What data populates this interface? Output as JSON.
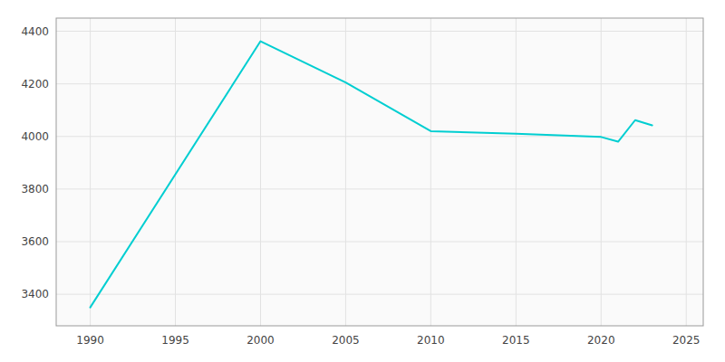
{
  "chart_data": {
    "type": "line",
    "x": [
      1990,
      2000,
      2005,
      2010,
      2015,
      2020,
      2021,
      2022,
      2023
    ],
    "values": [
      3350,
      4362,
      4205,
      4020,
      4010,
      3998,
      3980,
      4062,
      4042
    ],
    "color": "#00CED1",
    "xlim": [
      1988,
      2026
    ],
    "ylim": [
      3280,
      4450
    ],
    "xticks": [
      1990,
      1995,
      2000,
      2005,
      2010,
      2015,
      2020,
      2025
    ],
    "yticks": [
      3400,
      3600,
      3800,
      4000,
      4200,
      4400
    ],
    "grid": true
  }
}
